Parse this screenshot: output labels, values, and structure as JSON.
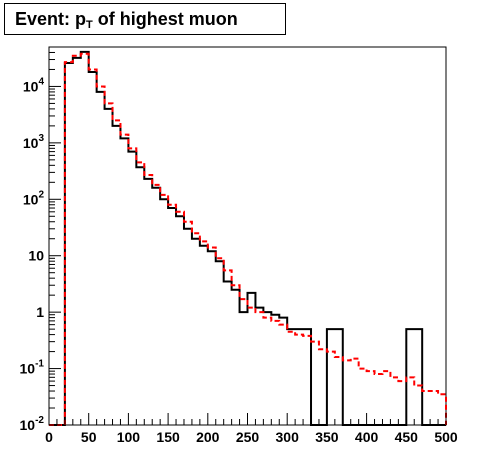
{
  "chart_data": {
    "type": "line",
    "title": {
      "prefix": "Event: p",
      "subscript": "T",
      "suffix": " of highest muon"
    },
    "xlabel": "",
    "ylabel": "",
    "xlim": [
      0,
      500
    ],
    "ylim": [
      0.01,
      50000
    ],
    "yscale": "log",
    "grid": false,
    "x_ticks": [
      0,
      50,
      100,
      150,
      200,
      250,
      300,
      350,
      400,
      450,
      500
    ],
    "y_ticks": [
      {
        "value": 0.01,
        "base": "10",
        "exp": "-2"
      },
      {
        "value": 0.1,
        "base": "10",
        "exp": "-1"
      },
      {
        "value": 1,
        "base": "1",
        "exp": ""
      },
      {
        "value": 10,
        "base": "10",
        "exp": ""
      },
      {
        "value": 100,
        "base": "10",
        "exp": "2"
      },
      {
        "value": 1000,
        "base": "10",
        "exp": "3"
      },
      {
        "value": 10000,
        "base": "10",
        "exp": "4"
      }
    ],
    "bin_width": 10,
    "series": [
      {
        "style": "solid",
        "color": "#000000",
        "bin_low_edges": [
          0,
          10,
          20,
          30,
          40,
          50,
          60,
          70,
          80,
          90,
          100,
          110,
          120,
          130,
          140,
          150,
          160,
          170,
          180,
          190,
          200,
          210,
          220,
          230,
          240,
          250,
          260,
          270,
          280,
          290,
          300,
          310,
          320,
          330,
          340,
          350,
          360,
          370,
          380,
          390,
          400,
          410,
          420,
          430,
          440,
          450,
          460,
          470,
          480,
          490
        ],
        "values": [
          0.001,
          0.001,
          26000,
          32000,
          41000,
          18000,
          8000,
          4000,
          2000,
          1200,
          700,
          370,
          230,
          160,
          100,
          70,
          50,
          30,
          20,
          15,
          12,
          8,
          3.5,
          2.5,
          1,
          2.2,
          1.2,
          1,
          0.9,
          0.8,
          0.5,
          0.5,
          0.5,
          0.001,
          0.001,
          0.5,
          0.5,
          0.001,
          0.001,
          0.001,
          0.001,
          0.001,
          0.001,
          0.001,
          0.001,
          0.5,
          0.5,
          0.001,
          0.001,
          0.001
        ]
      },
      {
        "style": "dashed",
        "color": "#ff0000",
        "bin_low_edges": [
          0,
          10,
          20,
          30,
          40,
          50,
          60,
          70,
          80,
          90,
          100,
          110,
          120,
          130,
          140,
          150,
          160,
          170,
          180,
          190,
          200,
          210,
          220,
          230,
          240,
          250,
          260,
          270,
          280,
          290,
          300,
          310,
          320,
          330,
          340,
          350,
          360,
          370,
          380,
          390,
          400,
          410,
          420,
          430,
          440,
          450,
          460,
          470,
          480,
          490
        ],
        "values": [
          0.001,
          0.001,
          27000,
          35000,
          38000,
          20000,
          10000,
          5000,
          2500,
          1400,
          800,
          450,
          270,
          180,
          120,
          80,
          60,
          40,
          25,
          18,
          14,
          9,
          5.5,
          3,
          1.7,
          1.2,
          1,
          0.8,
          0.7,
          0.6,
          0.45,
          0.4,
          0.38,
          0.3,
          0.22,
          0.2,
          0.16,
          0.14,
          0.15,
          0.1,
          0.09,
          0.08,
          0.09,
          0.07,
          0.06,
          0.07,
          0.05,
          0.04,
          0.04,
          0.035
        ]
      }
    ]
  }
}
